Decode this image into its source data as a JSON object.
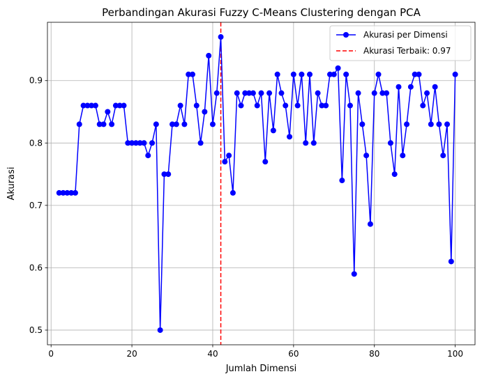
{
  "chart_data": {
    "type": "line",
    "title": "Perbandingan Akurasi Fuzzy C-Means Clustering dengan PCA",
    "xlabel": "Jumlah Dimensi",
    "ylabel": "Akurasi",
    "xlim": [
      -0.9,
      104.9
    ],
    "ylim": [
      0.4765,
      0.9935
    ],
    "xticks": [
      0,
      20,
      40,
      60,
      80,
      100
    ],
    "yticks": [
      0.5,
      0.6,
      0.7,
      0.8,
      0.9
    ],
    "ytick_labels": [
      "0.5",
      "0.6",
      "0.7",
      "0.8",
      "0.9"
    ],
    "grid": true,
    "legend_position": "top-right",
    "x": [
      2,
      3,
      4,
      5,
      6,
      7,
      8,
      9,
      10,
      11,
      12,
      13,
      14,
      15,
      16,
      17,
      18,
      19,
      20,
      21,
      22,
      23,
      24,
      25,
      26,
      27,
      28,
      29,
      30,
      31,
      32,
      33,
      34,
      35,
      36,
      37,
      38,
      39,
      40,
      41,
      42,
      43,
      44,
      45,
      46,
      47,
      48,
      49,
      50,
      51,
      52,
      53,
      54,
      55,
      56,
      57,
      58,
      59,
      60,
      61,
      62,
      63,
      64,
      65,
      66,
      67,
      68,
      69,
      70,
      71,
      72,
      73,
      74,
      75,
      76,
      77,
      78,
      79,
      80,
      81,
      82,
      83,
      84,
      85,
      86,
      87,
      88,
      89,
      90,
      91,
      92,
      93,
      94,
      95,
      96,
      97,
      98,
      99,
      100
    ],
    "series": [
      {
        "name": "Akurasi per Dimensi",
        "color": "#0000ff",
        "marker": "circle",
        "values": [
          0.72,
          0.72,
          0.72,
          0.72,
          0.72,
          0.83,
          0.86,
          0.86,
          0.86,
          0.86,
          0.83,
          0.83,
          0.85,
          0.83,
          0.86,
          0.86,
          0.86,
          0.8,
          0.8,
          0.8,
          0.8,
          0.8,
          0.78,
          0.8,
          0.83,
          0.5,
          0.75,
          0.75,
          0.83,
          0.83,
          0.86,
          0.83,
          0.91,
          0.91,
          0.86,
          0.8,
          0.85,
          0.94,
          0.83,
          0.88,
          0.97,
          0.77,
          0.78,
          0.72,
          0.88,
          0.86,
          0.88,
          0.88,
          0.88,
          0.86,
          0.88,
          0.77,
          0.88,
          0.82,
          0.91,
          0.88,
          0.86,
          0.81,
          0.91,
          0.86,
          0.91,
          0.8,
          0.91,
          0.8,
          0.88,
          0.86,
          0.86,
          0.91,
          0.91,
          0.92,
          0.74,
          0.91,
          0.86,
          0.59,
          0.88,
          0.83,
          0.78,
          0.67,
          0.88,
          0.91,
          0.88,
          0.88,
          0.8,
          0.75,
          0.89,
          0.78,
          0.83,
          0.89,
          0.91,
          0.91,
          0.86,
          0.88,
          0.83,
          0.89,
          0.83,
          0.78,
          0.83,
          0.61,
          0.91
        ]
      }
    ],
    "reference_lines": [
      {
        "name": "Akurasi Terbaik: 0.97",
        "orientation": "vertical",
        "x": 42,
        "color": "#ff0000",
        "style": "dashed"
      }
    ]
  }
}
